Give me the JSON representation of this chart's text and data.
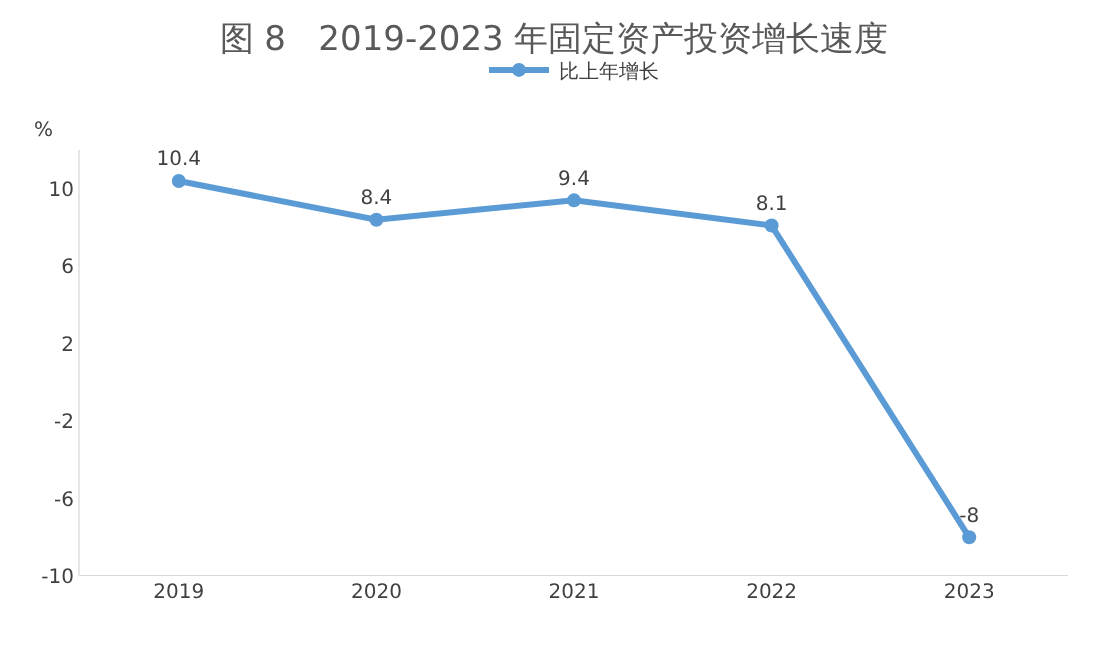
{
  "chart_data": {
    "type": "line",
    "title": "图 8   2019-2023 年固定资产投资增长速度",
    "ylabel": "%",
    "categories": [
      "2019",
      "2020",
      "2021",
      "2022",
      "2023"
    ],
    "series": [
      {
        "name": "比上年增长",
        "color": "#5b9bd5",
        "values": [
          10.4,
          8.4,
          9.4,
          8.1,
          -8
        ]
      }
    ],
    "ylim": [
      -10,
      12
    ],
    "yticks": [
      10,
      6,
      2,
      -2,
      -6,
      -10
    ],
    "data_labels": true,
    "legend": "top",
    "marker": "circle",
    "line_style": "solid"
  }
}
